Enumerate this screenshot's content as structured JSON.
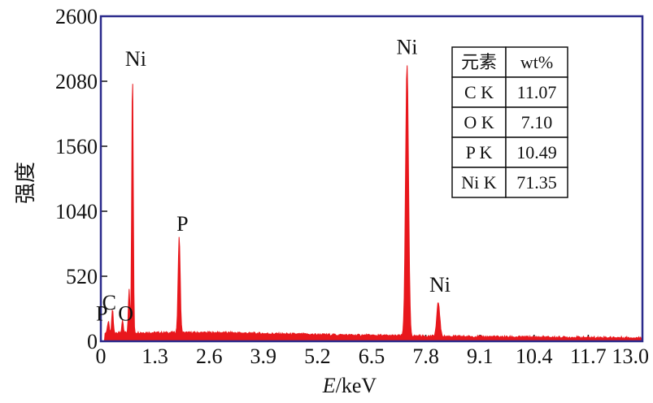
{
  "chart_data": {
    "type": "line",
    "style": "filled spectrum",
    "fill_color": "#e8171c",
    "frame_color": "#2a2a8c",
    "xlabel_italic": "E",
    "xlabel_rest": "/keV",
    "ylabel": "强度",
    "xlim": [
      0,
      13.0
    ],
    "ylim": [
      0,
      2600
    ],
    "x_ticks": [
      "0",
      "1.3",
      "2.6",
      "3.9",
      "5.2",
      "6.5",
      "7.8",
      "9.1",
      "10.4",
      "11.7",
      "13.0"
    ],
    "y_ticks": [
      "0",
      "520",
      "1040",
      "1560",
      "2080",
      "2600"
    ],
    "grid": false,
    "peaks": [
      {
        "label": "P",
        "x": 0.18,
        "y": 140
      },
      {
        "label": "C",
        "x": 0.28,
        "y": 240
      },
      {
        "label": "O",
        "x": 0.52,
        "y": 140
      },
      {
        "label": "",
        "x": 0.68,
        "y": 400
      },
      {
        "label": "Ni",
        "x": 0.76,
        "y": 2140
      },
      {
        "label": "P",
        "x": 1.88,
        "y": 820
      },
      {
        "label": "Ni",
        "x": 7.35,
        "y": 2220
      },
      {
        "label": "Ni",
        "x": 8.1,
        "y": 320
      }
    ],
    "baseline": 50,
    "table": {
      "headers": [
        "元素",
        "wt%"
      ],
      "rows": [
        [
          "C K",
          "11.07"
        ],
        [
          "O K",
          "7.10"
        ],
        [
          "P K",
          "10.49"
        ],
        [
          "Ni K",
          "71.35"
        ]
      ]
    }
  }
}
